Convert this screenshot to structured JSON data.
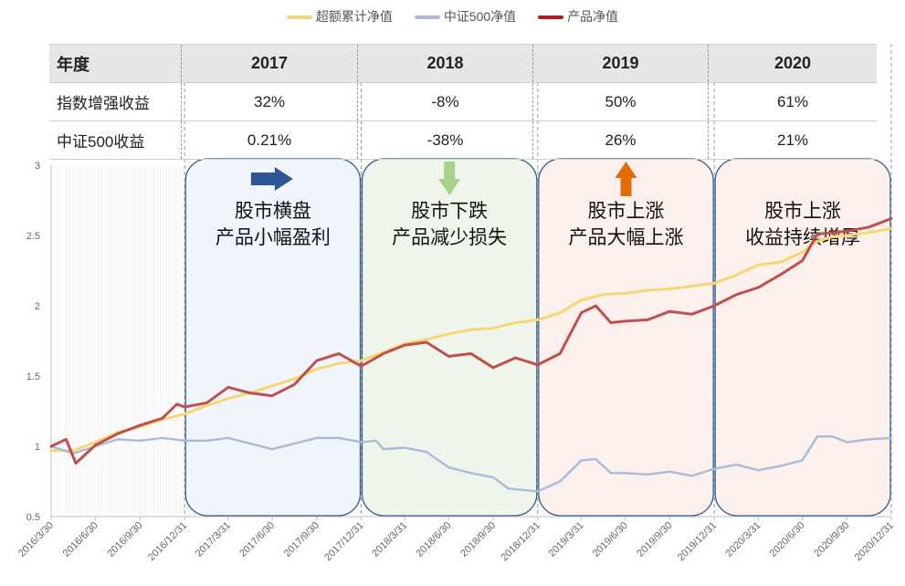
{
  "legend": [
    {
      "name": "超额累计净值",
      "color": "#f7d774"
    },
    {
      "name": "中证500净值",
      "color": "#a9bbd9"
    },
    {
      "name": "产品净值",
      "color": "#b71c1c"
    }
  ],
  "table": {
    "header": [
      "年度",
      "2017",
      "2018",
      "2019",
      "2020"
    ],
    "rows": [
      {
        "label": "指数增强收益",
        "values": [
          "32%",
          "-8%",
          "50%",
          "61%"
        ]
      },
      {
        "label": "中证500收益",
        "values": [
          "0.21%",
          "-38%",
          "26%",
          "21%"
        ]
      }
    ]
  },
  "panels": [
    {
      "start": "2016/12/31",
      "end": "2017/12/31",
      "lines": [
        "股市横盘",
        "产品小幅盈利"
      ],
      "fill": "#eef3fb",
      "arrow": "right",
      "arrow_color": "#2f5597"
    },
    {
      "start": "2017/12/31",
      "end": "2018/12/31",
      "lines": [
        "股市下跌",
        "产品减少损失"
      ],
      "fill": "#eef5e9",
      "arrow": "down",
      "arrow_color": "#a9d18e"
    },
    {
      "start": "2018/12/31",
      "end": "2019/12/31",
      "lines": [
        "股市上涨",
        "产品大幅上涨"
      ],
      "fill": "#fcefea",
      "arrow": "up",
      "arrow_color": "#e36c09"
    },
    {
      "start": "2019/12/31",
      "end": "2020/12/31",
      "lines": [
        "股市上涨",
        "收益持续增厚"
      ],
      "fill": "#fcefea",
      "arrow": "none",
      "arrow_color": ""
    }
  ],
  "chart_data": {
    "type": "line",
    "ylim": [
      0.5,
      3
    ],
    "yticks": [
      0.5,
      1,
      1.5,
      2,
      2.5,
      3
    ],
    "xticks": [
      "2016/3/30",
      "2016/6/30",
      "2016/9/30",
      "2016/12/31",
      "2017/3/31",
      "2017/6/30",
      "2017/9/30",
      "2017/12/31",
      "2018/3/31",
      "2018/6/30",
      "2018/9/30",
      "2018/12/31",
      "2019/3/31",
      "2019/6/30",
      "2019/9/30",
      "2019/12/31",
      "2020/3/31",
      "2020/6/30",
      "2020/9/30",
      "2020/12/31"
    ],
    "series": [
      {
        "name": "超额累计净值",
        "color": "#f7d774",
        "points": [
          [
            "2016/3/30",
            0.97
          ],
          [
            "2016/5/15",
            0.97
          ],
          [
            "2016/6/30",
            1.03
          ],
          [
            "2016/8/15",
            1.1
          ],
          [
            "2016/9/30",
            1.14
          ],
          [
            "2016/11/15",
            1.19
          ],
          [
            "2016/12/31",
            1.23
          ],
          [
            "2017/2/15",
            1.29
          ],
          [
            "2017/3/31",
            1.34
          ],
          [
            "2017/5/15",
            1.38
          ],
          [
            "2017/6/30",
            1.43
          ],
          [
            "2017/8/15",
            1.48
          ],
          [
            "2017/9/30",
            1.55
          ],
          [
            "2017/11/15",
            1.59
          ],
          [
            "2017/12/31",
            1.61
          ],
          [
            "2018/2/15",
            1.67
          ],
          [
            "2018/3/31",
            1.73
          ],
          [
            "2018/5/15",
            1.76
          ],
          [
            "2018/6/30",
            1.8
          ],
          [
            "2018/8/15",
            1.83
          ],
          [
            "2018/9/30",
            1.84
          ],
          [
            "2018/11/15",
            1.88
          ],
          [
            "2018/12/31",
            1.9
          ],
          [
            "2019/2/15",
            1.95
          ],
          [
            "2019/3/31",
            2.04
          ],
          [
            "2019/5/15",
            2.08
          ],
          [
            "2019/6/30",
            2.09
          ],
          [
            "2019/8/15",
            2.11
          ],
          [
            "2019/9/30",
            2.12
          ],
          [
            "2019/11/15",
            2.14
          ],
          [
            "2019/12/31",
            2.16
          ],
          [
            "2020/2/15",
            2.22
          ],
          [
            "2020/3/31",
            2.29
          ],
          [
            "2020/5/15",
            2.31
          ],
          [
            "2020/6/30",
            2.38
          ],
          [
            "2020/7/31",
            2.46
          ],
          [
            "2020/8/31",
            2.49
          ],
          [
            "2020/9/30",
            2.5
          ],
          [
            "2020/11/15",
            2.52
          ],
          [
            "2020/12/31",
            2.55
          ]
        ]
      },
      {
        "name": "中证500净值",
        "color": "#a9bbd9",
        "points": [
          [
            "2016/3/30",
            1.0
          ],
          [
            "2016/5/15",
            0.95
          ],
          [
            "2016/6/30",
            1.0
          ],
          [
            "2016/8/15",
            1.05
          ],
          [
            "2016/9/30",
            1.04
          ],
          [
            "2016/11/15",
            1.06
          ],
          [
            "2016/12/31",
            1.04
          ],
          [
            "2017/2/15",
            1.04
          ],
          [
            "2017/3/31",
            1.06
          ],
          [
            "2017/5/15",
            1.02
          ],
          [
            "2017/6/30",
            0.98
          ],
          [
            "2017/8/15",
            1.02
          ],
          [
            "2017/9/30",
            1.06
          ],
          [
            "2017/11/15",
            1.06
          ],
          [
            "2017/12/31",
            1.03
          ],
          [
            "2018/1/31",
            1.04
          ],
          [
            "2018/2/15",
            0.98
          ],
          [
            "2018/3/31",
            0.99
          ],
          [
            "2018/5/15",
            0.96
          ],
          [
            "2018/6/30",
            0.85
          ],
          [
            "2018/8/15",
            0.81
          ],
          [
            "2018/9/30",
            0.78
          ],
          [
            "2018/10/31",
            0.7
          ],
          [
            "2018/12/31",
            0.68
          ],
          [
            "2019/2/15",
            0.75
          ],
          [
            "2019/3/31",
            0.9
          ],
          [
            "2019/4/30",
            0.91
          ],
          [
            "2019/5/31",
            0.81
          ],
          [
            "2019/6/30",
            0.81
          ],
          [
            "2019/8/15",
            0.8
          ],
          [
            "2019/9/30",
            0.82
          ],
          [
            "2019/11/15",
            0.79
          ],
          [
            "2019/12/31",
            0.84
          ],
          [
            "2020/2/15",
            0.87
          ],
          [
            "2020/3/31",
            0.83
          ],
          [
            "2020/5/15",
            0.86
          ],
          [
            "2020/6/30",
            0.9
          ],
          [
            "2020/7/31",
            1.07
          ],
          [
            "2020/8/31",
            1.07
          ],
          [
            "2020/9/30",
            1.03
          ],
          [
            "2020/11/15",
            1.05
          ],
          [
            "2020/12/31",
            1.06
          ]
        ]
      },
      {
        "name": "产品净值",
        "color": "#c0504d",
        "points": [
          [
            "2016/3/30",
            1.0
          ],
          [
            "2016/4/30",
            1.05
          ],
          [
            "2016/5/20",
            0.88
          ],
          [
            "2016/6/30",
            1.01
          ],
          [
            "2016/8/15",
            1.09
          ],
          [
            "2016/9/30",
            1.15
          ],
          [
            "2016/11/15",
            1.2
          ],
          [
            "2016/12/15",
            1.3
          ],
          [
            "2016/12/31",
            1.28
          ],
          [
            "2017/2/15",
            1.31
          ],
          [
            "2017/3/31",
            1.42
          ],
          [
            "2017/5/15",
            1.38
          ],
          [
            "2017/6/30",
            1.36
          ],
          [
            "2017/8/15",
            1.44
          ],
          [
            "2017/9/30",
            1.61
          ],
          [
            "2017/11/15",
            1.66
          ],
          [
            "2017/12/31",
            1.57
          ],
          [
            "2018/2/15",
            1.66
          ],
          [
            "2018/3/31",
            1.72
          ],
          [
            "2018/5/15",
            1.74
          ],
          [
            "2018/6/30",
            1.64
          ],
          [
            "2018/8/15",
            1.66
          ],
          [
            "2018/9/30",
            1.56
          ],
          [
            "2018/11/15",
            1.63
          ],
          [
            "2018/12/31",
            1.58
          ],
          [
            "2019/2/15",
            1.66
          ],
          [
            "2019/3/31",
            1.95
          ],
          [
            "2019/4/30",
            2.0
          ],
          [
            "2019/5/31",
            1.88
          ],
          [
            "2019/6/30",
            1.89
          ],
          [
            "2019/8/15",
            1.9
          ],
          [
            "2019/9/30",
            1.96
          ],
          [
            "2019/11/15",
            1.94
          ],
          [
            "2019/12/31",
            2.0
          ],
          [
            "2020/2/15",
            2.08
          ],
          [
            "2020/3/31",
            2.13
          ],
          [
            "2020/5/15",
            2.22
          ],
          [
            "2020/6/30",
            2.32
          ],
          [
            "2020/7/31",
            2.51
          ],
          [
            "2020/8/31",
            2.52
          ],
          [
            "2020/9/30",
            2.53
          ],
          [
            "2020/11/15",
            2.56
          ],
          [
            "2020/12/31",
            2.62
          ]
        ]
      }
    ]
  }
}
